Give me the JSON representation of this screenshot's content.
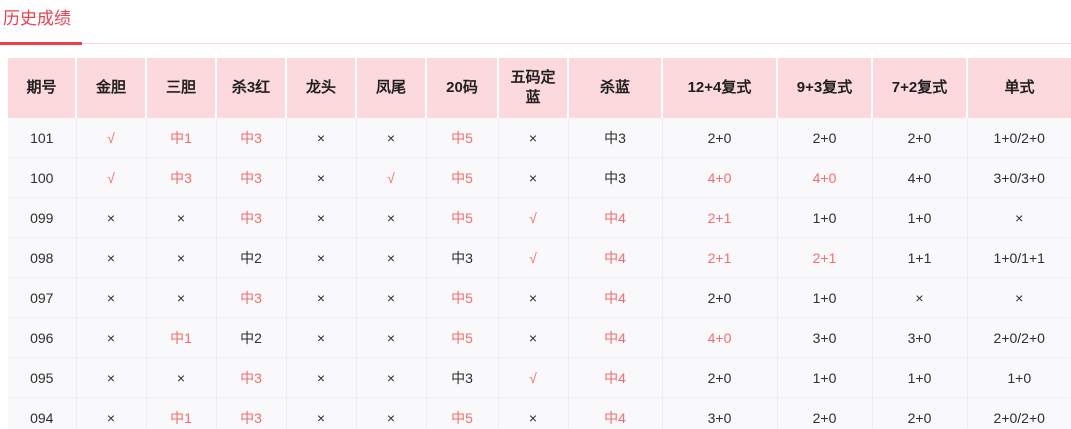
{
  "page": {
    "title": "历史成绩"
  },
  "colors": {
    "accent": "#ee3f4d",
    "header_bg": "#fcd9dc",
    "hit_text": "#f56c6c",
    "body_text": "#2e2e2e"
  },
  "table": {
    "headers": [
      "期号",
      "金胆",
      "三胆",
      "杀3红",
      "龙头",
      "凤尾",
      "20码",
      "五码定蓝",
      "杀蓝",
      "12+4复式",
      "9+3复式",
      "7+2复式",
      "单式"
    ],
    "rows": [
      {
        "cells": [
          "101",
          "√",
          "中1",
          "中3",
          "×",
          "×",
          "中5",
          "×",
          "中3",
          "2+0",
          "2+0",
          "2+0",
          "1+0/2+0"
        ],
        "red": [
          false,
          true,
          true,
          true,
          false,
          false,
          true,
          false,
          false,
          false,
          false,
          false,
          false
        ]
      },
      {
        "cells": [
          "100",
          "√",
          "中3",
          "中3",
          "×",
          "√",
          "中5",
          "×",
          "中3",
          "4+0",
          "4+0",
          "4+0",
          "3+0/3+0"
        ],
        "red": [
          false,
          true,
          true,
          true,
          false,
          true,
          true,
          false,
          false,
          true,
          true,
          false,
          false
        ]
      },
      {
        "cells": [
          "099",
          "×",
          "×",
          "中3",
          "×",
          "×",
          "中5",
          "√",
          "中4",
          "2+1",
          "1+0",
          "1+0",
          "×"
        ],
        "red": [
          false,
          false,
          false,
          true,
          false,
          false,
          true,
          true,
          true,
          true,
          false,
          false,
          false
        ]
      },
      {
        "cells": [
          "098",
          "×",
          "×",
          "中2",
          "×",
          "×",
          "中3",
          "√",
          "中4",
          "2+1",
          "2+1",
          "1+1",
          "1+0/1+1"
        ],
        "red": [
          false,
          false,
          false,
          false,
          false,
          false,
          false,
          true,
          true,
          true,
          true,
          false,
          false
        ]
      },
      {
        "cells": [
          "097",
          "×",
          "×",
          "中3",
          "×",
          "×",
          "中5",
          "×",
          "中4",
          "2+0",
          "1+0",
          "×",
          "×"
        ],
        "red": [
          false,
          false,
          false,
          true,
          false,
          false,
          true,
          false,
          true,
          false,
          false,
          false,
          false
        ]
      },
      {
        "cells": [
          "096",
          "×",
          "中1",
          "中2",
          "×",
          "×",
          "中5",
          "×",
          "中4",
          "4+0",
          "3+0",
          "3+0",
          "2+0/2+0"
        ],
        "red": [
          false,
          false,
          true,
          false,
          false,
          false,
          true,
          false,
          true,
          true,
          false,
          false,
          false
        ]
      },
      {
        "cells": [
          "095",
          "×",
          "×",
          "中3",
          "×",
          "×",
          "中3",
          "√",
          "中4",
          "2+0",
          "1+0",
          "1+0",
          "1+0"
        ],
        "red": [
          false,
          false,
          false,
          true,
          false,
          false,
          false,
          true,
          true,
          false,
          false,
          false,
          false
        ]
      },
      {
        "cells": [
          "094",
          "×",
          "中1",
          "中3",
          "×",
          "×",
          "中5",
          "×",
          "中4",
          "3+0",
          "2+0",
          "2+0",
          "2+0/2+0"
        ],
        "red": [
          false,
          false,
          true,
          true,
          false,
          false,
          true,
          false,
          true,
          false,
          false,
          false,
          false
        ]
      }
    ]
  }
}
